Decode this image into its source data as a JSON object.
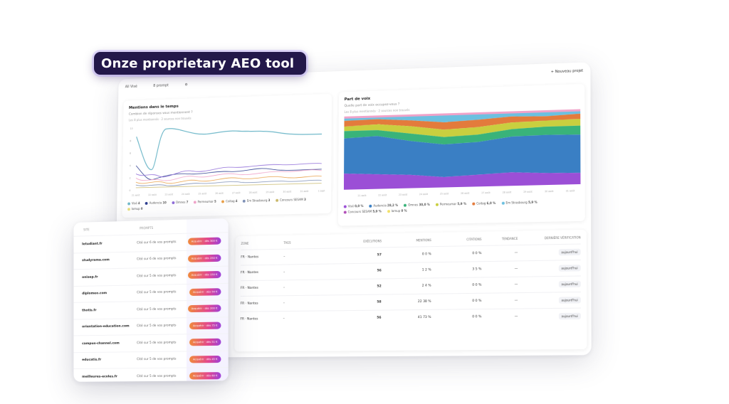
{
  "headline": "Onze proprietary AEO tool",
  "topbar": {
    "workspace": "All  Visé",
    "filter": "8 prompt",
    "new_project": "Nouveau projet"
  },
  "mentions_panel": {
    "title": "Mentions dans le temps",
    "subtitle": "Combien de réponses vous mentionnent ?",
    "note": "Les 8 plus mentionnés · 2 sources non trouvés",
    "x_labels": [
      "21 août",
      "22 août",
      "23 août",
      "24 août",
      "25 août",
      "26 août",
      "27 août",
      "28 août",
      "29 août",
      "30 août",
      "31 août",
      "1 sept"
    ],
    "y_labels": [
      "0",
      "2",
      "4",
      "6",
      "8",
      "10"
    ],
    "legend": [
      {
        "label": "Visé",
        "value": "4",
        "color": "#6fb8c9"
      },
      {
        "label": "Audencia",
        "value": "10",
        "color": "#2b3c8f"
      },
      {
        "label": "Omnes",
        "value": "7",
        "color": "#8e6bd8"
      },
      {
        "label": "Permeumar",
        "value": "5",
        "color": "#f0a3c9"
      },
      {
        "label": "Coitag",
        "value": "4",
        "color": "#e9a049"
      },
      {
        "label": "Em Strasbourg",
        "value": "3",
        "color": "#7d8fb5"
      },
      {
        "label": "Concours SESAM",
        "value": "3",
        "color": "#c9b86a"
      },
      {
        "label": "Iomup",
        "value": "0",
        "color": "#e8e07a"
      }
    ]
  },
  "share_panel": {
    "title": "Part de voix",
    "subtitle": "Quelle part de voix occupez-vous ?",
    "note": "Les 8 plus mentionnés · 2 sources non trouvés",
    "x_labels": [
      "21 août",
      "22 août",
      "23 août",
      "24 août",
      "25 août",
      "26 août",
      "27 août",
      "28 août",
      "29 août",
      "30 août",
      "31 août"
    ],
    "legend": [
      {
        "label": "Visé",
        "value": "0,0 %",
        "color": "#9b4fd6"
      },
      {
        "label": "Audencia",
        "value": "28,2 %",
        "color": "#3a7fc4"
      },
      {
        "label": "Omnes",
        "value": "30,0 %",
        "color": "#39b37a"
      },
      {
        "label": "Permeumar",
        "value": "5,9 %",
        "color": "#c9cf3f"
      },
      {
        "label": "Coitag",
        "value": "6,0 %",
        "color": "#e37b3c"
      },
      {
        "label": "Em Strasbourg",
        "value": "5,9 %",
        "color": "#6cc0e0"
      },
      {
        "label": "Concours SESAM",
        "value": "5,9 %",
        "color": "#b14fb8"
      },
      {
        "label": "Iomup",
        "value": "0 %",
        "color": "#f2e06a"
      }
    ]
  },
  "table": {
    "headers": [
      "Zone",
      "Tags",
      "Exécutions",
      "Mentions",
      "Citations",
      "Tendance",
      "Dernière vérification"
    ],
    "rows": [
      {
        "zone": "FR · Nantes",
        "tags": "–",
        "exec": "57",
        "mentions": "0",
        "mentions_pct": "0 %",
        "cit": "0",
        "cit_pct": "0 %",
        "trend": "—",
        "last": "aujourd'hui"
      },
      {
        "zone": "FR · Nantes",
        "tags": "–",
        "exec": "56",
        "mentions": "1",
        "mentions_pct": "2 %",
        "cit": "3",
        "cit_pct": "5 %",
        "trend": "—",
        "last": "aujourd'hui"
      },
      {
        "zone": "FR · Nantes",
        "tags": "–",
        "exec": "52",
        "mentions": "2",
        "mentions_pct": "4 %",
        "cit": "0",
        "cit_pct": "0 %",
        "trend": "—",
        "last": "aujourd'hui"
      },
      {
        "zone": "FR · Nantes",
        "tags": "–",
        "exec": "58",
        "mentions": "22",
        "mentions_pct": "38 %",
        "cit": "0",
        "cit_pct": "0 %",
        "trend": "—",
        "last": "aujourd'hui"
      },
      {
        "zone": "FR · Nantes",
        "tags": "–",
        "exec": "56",
        "mentions": "41",
        "mentions_pct": "73 %",
        "cit": "0",
        "cit_pct": "0 %",
        "trend": "—",
        "last": "aujourd'hui"
      }
    ]
  },
  "sources_card": {
    "headers": [
      "Site",
      "Prompts"
    ],
    "rows": [
      {
        "site": "letudiant.fr",
        "cited": "Cité sur 6 de vos prompts",
        "pill": "Acquérir · dès 300 €"
      },
      {
        "site": "studyrama.com",
        "cited": "Cité sur 6 de vos prompts",
        "pill": "Acquérir · dès 250 €"
      },
      {
        "site": "onisep.fr",
        "cited": "Cité sur 5 de vos prompts",
        "pill": "Acquérir · dès 150 €"
      },
      {
        "site": "diplomeo.com",
        "cited": "Cité sur 5 de vos prompts",
        "pill": "Acquérir · dès 54 €"
      },
      {
        "site": "thotis.fr",
        "cited": "Cité sur 5 de vos prompts",
        "pill": "Acquérir · dès 200 €"
      },
      {
        "site": "orientation-education.com",
        "cited": "Cité sur 5 de vos prompts",
        "pill": "Acquérir · dès 75 €"
      },
      {
        "site": "campus-channel.com",
        "cited": "Cité sur 5 de vos prompts",
        "pill": "Acquérir · dès 51 €"
      },
      {
        "site": "educatis.fr",
        "cited": "Cité sur 5 de vos prompts",
        "pill": "Acquérir · dès 45 €"
      },
      {
        "site": "meilleures-ecoles.fr",
        "cited": "Cité sur 5 de vos prompts",
        "pill": "Acquérir · dès 60 €"
      }
    ]
  }
}
